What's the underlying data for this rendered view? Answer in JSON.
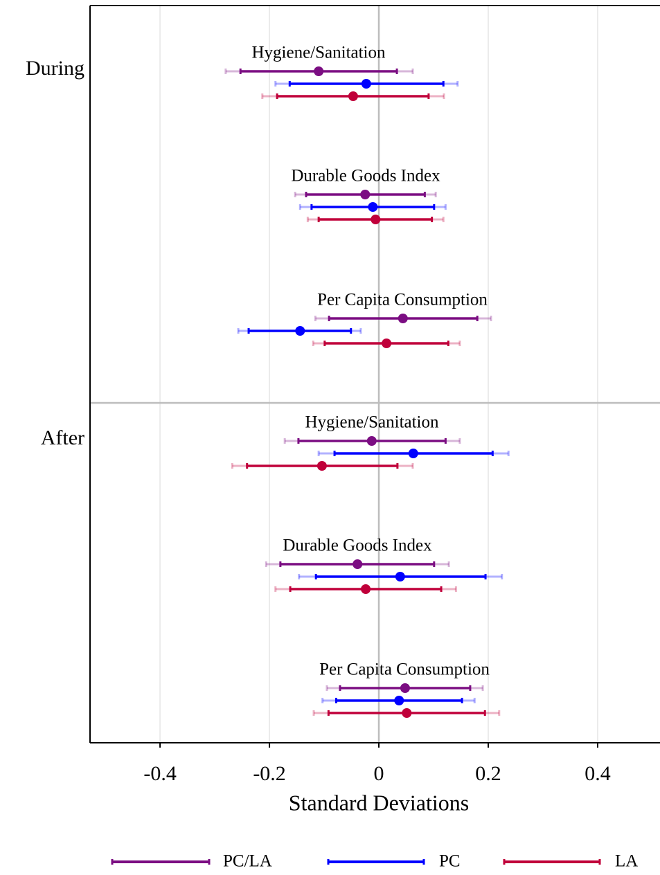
{
  "chart_data": {
    "type": "errorbar",
    "xlabel": "Standard Deviations",
    "xlim": [
      -0.528,
      0.514
    ],
    "xticks": [
      -0.4,
      -0.2,
      0,
      0.2,
      0.4
    ],
    "grid": true,
    "legend": "bottom",
    "series": [
      {
        "name": "PC/LA",
        "color": "#7b0d82"
      },
      {
        "name": "PC",
        "color": "#0000ff"
      },
      {
        "name": "LA",
        "color": "#c0003a"
      }
    ],
    "panels": [
      {
        "label": "During",
        "groups": [
          {
            "label": "Hygiene/Sanitation",
            "estimates": [
              -0.11,
              -0.023,
              -0.047
            ],
            "ci_inner": [
              [
                -0.253,
                0.033
              ],
              [
                -0.163,
                0.118
              ],
              [
                -0.186,
                0.091
              ]
            ],
            "ci_outer": [
              [
                -0.28,
                0.062
              ],
              [
                -0.189,
                0.144
              ],
              [
                -0.213,
                0.119
              ]
            ]
          },
          {
            "label": "Durable Goods Index",
            "estimates": [
              -0.025,
              -0.011,
              -0.006
            ],
            "ci_inner": [
              [
                -0.133,
                0.084
              ],
              [
                -0.123,
                0.101
              ],
              [
                -0.11,
                0.097
              ]
            ],
            "ci_outer": [
              [
                -0.153,
                0.104
              ],
              [
                -0.144,
                0.122
              ],
              [
                -0.13,
                0.118
              ]
            ]
          },
          {
            "label": "Per Capita Consumption",
            "estimates": [
              0.044,
              -0.144,
              0.014
            ],
            "ci_inner": [
              [
                -0.091,
                0.18
              ],
              [
                -0.238,
                -0.051
              ],
              [
                -0.099,
                0.127
              ]
            ],
            "ci_outer": [
              [
                -0.116,
                0.205
              ],
              [
                -0.257,
                -0.033
              ],
              [
                -0.12,
                0.148
              ]
            ]
          }
        ]
      },
      {
        "label": "After",
        "groups": [
          {
            "label": "Hygiene/Sanitation",
            "estimates": [
              -0.013,
              0.063,
              -0.104
            ],
            "ci_inner": [
              [
                -0.147,
                0.122
              ],
              [
                -0.081,
                0.208
              ],
              [
                -0.241,
                0.034
              ]
            ],
            "ci_outer": [
              [
                -0.172,
                0.148
              ],
              [
                -0.11,
                0.237
              ],
              [
                -0.268,
                0.062
              ]
            ]
          },
          {
            "label": "Durable Goods Index",
            "estimates": [
              -0.039,
              0.039,
              -0.024
            ],
            "ci_inner": [
              [
                -0.18,
                0.101
              ],
              [
                -0.115,
                0.195
              ],
              [
                -0.162,
                0.114
              ]
            ],
            "ci_outer": [
              [
                -0.206,
                0.128
              ],
              [
                -0.146,
                0.225
              ],
              [
                -0.189,
                0.141
              ]
            ]
          },
          {
            "label": "Per Capita Consumption",
            "estimates": [
              0.048,
              0.037,
              0.051
            ],
            "ci_inner": [
              [
                -0.071,
                0.167
              ],
              [
                -0.078,
                0.152
              ],
              [
                -0.092,
                0.194
              ]
            ],
            "ci_outer": [
              [
                -0.095,
                0.19
              ],
              [
                -0.103,
                0.175
              ],
              [
                -0.119,
                0.22
              ]
            ]
          }
        ]
      }
    ]
  }
}
